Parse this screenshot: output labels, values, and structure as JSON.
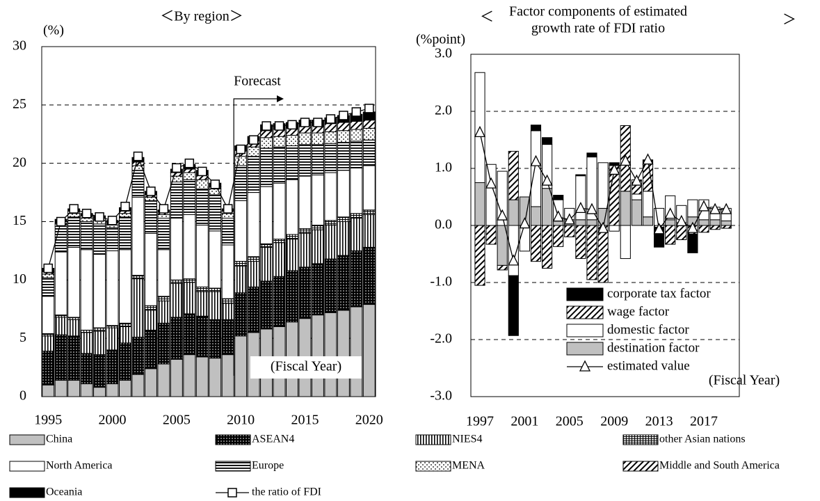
{
  "chart_data": [
    {
      "type": "bar",
      "title": "＜By region＞",
      "y_label": "(%)",
      "x_label": "(Fiscal Year)",
      "annotation": "Forecast",
      "categories": [
        "1995",
        null,
        null,
        null,
        null,
        "2000",
        null,
        null,
        null,
        null,
        "2005",
        null,
        null,
        null,
        null,
        "2010",
        null,
        null,
        null,
        null,
        "2015",
        null,
        null,
        null,
        null,
        "2020"
      ],
      "ylim": [
        0,
        30
      ],
      "yticks": [
        0,
        5,
        10,
        15,
        20,
        25,
        30
      ],
      "grid": true,
      "stacked": true,
      "series": [
        {
          "name": "China",
          "color": "#c0c0c0",
          "values": [
            1.0,
            1.4,
            1.4,
            1.1,
            0.8,
            1.1,
            1.4,
            1.9,
            2.4,
            2.8,
            3.2,
            3.6,
            3.4,
            3.3,
            3.6,
            5.2,
            5.5,
            5.8,
            6.0,
            6.4,
            6.7,
            7.0,
            7.2,
            7.4,
            7.7,
            7.9
          ]
        },
        {
          "name": "ASEAN4",
          "color": "#000000",
          "pattern": "dots-dark",
          "values": [
            2.9,
            3.9,
            3.8,
            2.6,
            2.8,
            2.9,
            3.2,
            3.2,
            3.3,
            3.5,
            3.6,
            3.5,
            3.5,
            3.3,
            3.0,
            3.7,
            3.9,
            4.1,
            4.3,
            4.4,
            4.4,
            4.4,
            4.6,
            4.7,
            4.8,
            4.9
          ]
        },
        {
          "name": "NIES4",
          "color": "#ffffff",
          "pattern": "vlines",
          "values": [
            1.3,
            1.5,
            1.4,
            1.8,
            2.0,
            1.9,
            1.4,
            5.0,
            1.7,
            1.9,
            2.9,
            2.7,
            2.1,
            2.4,
            1.4,
            2.3,
            2.2,
            2.9,
            2.9,
            2.7,
            2.9,
            2.9,
            2.9,
            2.9,
            2.8,
            2.8
          ]
        },
        {
          "name": "other Asian nations",
          "color": "#ffffff",
          "pattern": "grid",
          "values": [
            0.2,
            0.2,
            0.2,
            0.2,
            0.3,
            0.2,
            0.3,
            0.3,
            0.4,
            0.4,
            0.3,
            0.3,
            0.4,
            0.3,
            0.4,
            0.4,
            0.4,
            0.3,
            0.3,
            0.4,
            0.4,
            0.4,
            0.4,
            0.4,
            0.4,
            0.4
          ]
        },
        {
          "name": "North America",
          "color": "#ffffff",
          "values": [
            3.2,
            5.4,
            6.0,
            6.9,
            6.3,
            6.4,
            6.3,
            6.7,
            6.2,
            4.0,
            5.3,
            5.5,
            5.3,
            4.9,
            4.6,
            5.2,
            5.5,
            4.9,
            4.8,
            4.7,
            4.5,
            4.3,
            4.1,
            4.0,
            3.9,
            3.8
          ]
        },
        {
          "name": "Europe",
          "color": "#ffffff",
          "pattern": "hlines",
          "values": [
            1.6,
            2.2,
            2.6,
            2.4,
            2.6,
            2.0,
            2.8,
            2.3,
            2.8,
            2.7,
            3.1,
            3.0,
            3.1,
            3.1,
            2.3,
            3.0,
            3.1,
            3.3,
            3.1,
            2.9,
            2.7,
            2.6,
            2.5,
            2.4,
            2.3,
            2.2
          ]
        },
        {
          "name": "MENA",
          "color": "#ffffff",
          "pattern": "dots-light",
          "values": [
            0.3,
            0.2,
            0.3,
            0.3,
            0.3,
            0.2,
            0.3,
            0.4,
            0.3,
            0.3,
            0.5,
            0.6,
            0.8,
            0.5,
            0.4,
            0.8,
            0.8,
            0.9,
            0.9,
            0.9,
            1.0,
            1.0,
            1.0,
            1.0,
            1.0,
            1.0
          ]
        },
        {
          "name": "Middle and South America",
          "color": "#ffffff",
          "pattern": "diag",
          "values": [
            0.2,
            0.2,
            0.2,
            0.2,
            0.2,
            0.2,
            0.2,
            0.3,
            0.2,
            0.2,
            0.3,
            0.3,
            0.4,
            0.2,
            0.2,
            0.5,
            0.5,
            0.6,
            0.6,
            0.6,
            0.6,
            0.6,
            0.7,
            0.7,
            0.7,
            0.7
          ]
        },
        {
          "name": "Oceania",
          "color": "#000000",
          "values": [
            0.3,
            0.2,
            0.2,
            0.2,
            0.2,
            0.2,
            0.3,
            0.4,
            0.3,
            0.2,
            0.3,
            0.4,
            0.4,
            0.3,
            0.2,
            0.4,
            0.4,
            0.5,
            0.5,
            0.5,
            0.5,
            0.5,
            0.5,
            0.6,
            0.6,
            0.7
          ]
        },
        {
          "name": "the ratio of FDI",
          "type": "line",
          "marker": "square",
          "color": "#000000",
          "values": [
            11.0,
            15.0,
            16.1,
            15.7,
            15.4,
            15.1,
            16.3,
            20.6,
            17.6,
            16.1,
            19.6,
            20.0,
            19.3,
            18.2,
            16.1,
            21.2,
            22.0,
            23.2,
            23.2,
            23.3,
            23.5,
            23.5,
            23.8,
            24.1,
            24.4,
            24.7
          ]
        }
      ]
    },
    {
      "type": "bar",
      "title": [
        "＜",
        "Factor components of estimated",
        "growth rate of FDI ratio",
        "＞"
      ],
      "y_label": "(%point)",
      "x_label": "(Fiscal Year)",
      "categories": [
        "1997",
        null,
        null,
        null,
        "2001",
        null,
        null,
        null,
        "2005",
        null,
        null,
        null,
        "2009",
        null,
        null,
        null,
        "2013",
        null,
        null,
        null,
        "2017",
        null,
        null
      ],
      "ylim": [
        -3,
        3
      ],
      "yticks": [
        {
          "value": -3,
          "label": "-3.0"
        },
        {
          "value": -2,
          "label": "-2.0"
        },
        {
          "value": -1,
          "label": "-1.0"
        },
        {
          "value": 0,
          "label": "0.0"
        },
        {
          "value": 1,
          "label": "1.0"
        },
        {
          "value": 2,
          "label": "2.0"
        },
        {
          "value": 3,
          "label": "3.0"
        }
      ],
      "grid": true,
      "stacked": true,
      "series": [
        {
          "name": "destination factor",
          "color": "#c0c0c0",
          "values": [
            0.75,
            0,
            -0.7,
            0.45,
            0.5,
            0.33,
            0.65,
            0.1,
            0.1,
            0.1,
            0.1,
            0.3,
            0,
            0.6,
            0.45,
            0.15,
            0,
            0.1,
            0.05,
            0.15,
            0.1,
            0.1,
            0.08
          ]
        },
        {
          "name": "domestic factor",
          "color": "#ffffff",
          "values": [
            1.93,
            1.07,
            0.95,
            -0.88,
            -0.45,
            1.33,
            0.77,
            0.35,
            0.2,
            0.77,
            1.1,
            0.8,
            -0.1,
            -0.58,
            0.1,
            0.45,
            0.3,
            0.42,
            0.3,
            0.3,
            0.35,
            0.22,
            0.22
          ]
        },
        {
          "name": "wage factor",
          "color": "#ffffff",
          "pattern": "diag",
          "values": [
            -1.05,
            -0.33,
            -0.08,
            0.85,
            0,
            -0.63,
            -0.75,
            -0.37,
            -0.2,
            -0.58,
            -0.95,
            -1.0,
            1.05,
            1.15,
            0.25,
            0.5,
            -0.03,
            -0.33,
            -0.25,
            -0.15,
            -0.12,
            -0.07,
            -0.05
          ]
        },
        {
          "name": "corporate tax factor",
          "color": "#000000",
          "values": [
            0,
            0,
            0,
            -1.05,
            0,
            0.1,
            0.12,
            0.08,
            0,
            0.02,
            0.07,
            0,
            0.05,
            0,
            0,
            0.05,
            -0.35,
            0,
            0,
            -0.33,
            0,
            0,
            0
          ]
        },
        {
          "name": "estimated value",
          "type": "line",
          "marker": "triangle",
          "color": "#000000",
          "values": [
            1.63,
            0.73,
            0.17,
            -0.62,
            0.03,
            1.12,
            0.78,
            0.15,
            0.1,
            0.3,
            0.28,
            -0.05,
            0.97,
            1.13,
            0.78,
            1.15,
            -0.07,
            0.2,
            0.07,
            -0.05,
            0.33,
            0.28,
            0.28
          ]
        }
      ]
    }
  ]
}
